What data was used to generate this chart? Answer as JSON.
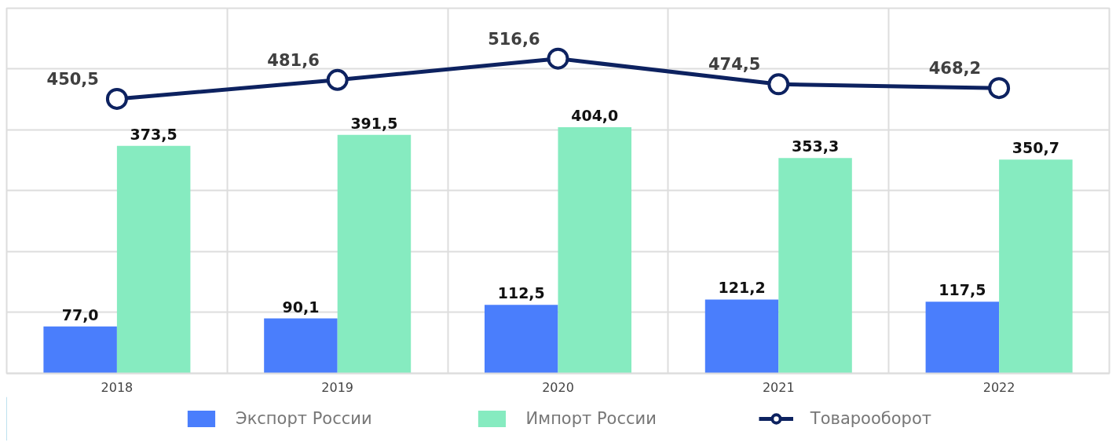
{
  "chart_data": {
    "type": "bar",
    "categories": [
      "2018",
      "2019",
      "2020",
      "2021",
      "2022"
    ],
    "series": [
      {
        "name": "Экспорт России",
        "color": "#4a7efc",
        "values": [
          77.0,
          90.1,
          112.5,
          121.2,
          117.5
        ],
        "value_labels": [
          "77,0",
          "90,1",
          "112,5",
          "121,2",
          "117,5"
        ]
      },
      {
        "name": "Импорт России",
        "color": "#86ebc0",
        "values": [
          373.5,
          391.5,
          404.0,
          353.3,
          350.7
        ],
        "value_labels": [
          "373,5",
          "391,5",
          "404,0",
          "353,3",
          "350,7"
        ]
      },
      {
        "name": "Товарооборот",
        "color": "#0d2260",
        "type": "line",
        "values": [
          450.5,
          481.6,
          516.6,
          474.5,
          468.2
        ],
        "value_labels": [
          "450,5",
          "481,6",
          "516,6",
          "474,5",
          "468,2"
        ]
      }
    ],
    "tick_labels": "x",
    "grid": true,
    "legend": "bottom",
    "marker": "circle",
    "line_style": "solid"
  }
}
